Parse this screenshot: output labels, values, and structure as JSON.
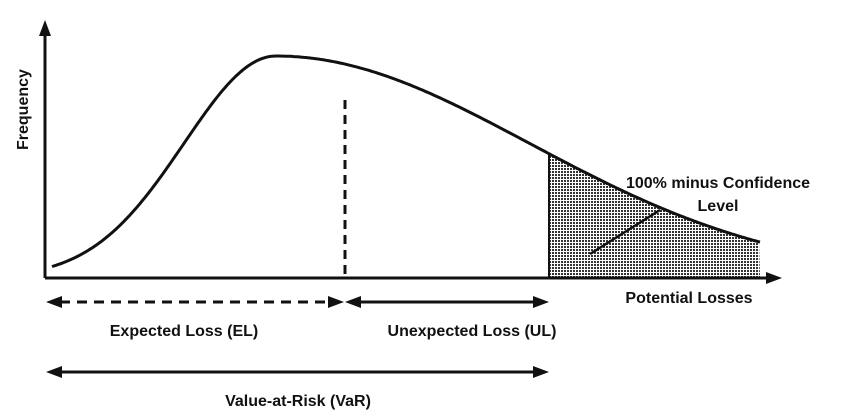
{
  "axes": {
    "y_label": "Frequency",
    "x_label": "Potential Losses"
  },
  "annotations": {
    "tail_label_line1": "100% minus Confidence",
    "tail_label_line2": "Level",
    "expected_loss": "Expected Loss (EL)",
    "unexpected_loss": "Unexpected Loss (UL)",
    "value_at_risk": "Value-at-Risk (VaR)"
  },
  "colors": {
    "ink": "#111111",
    "tail_fill": "#555555"
  }
}
